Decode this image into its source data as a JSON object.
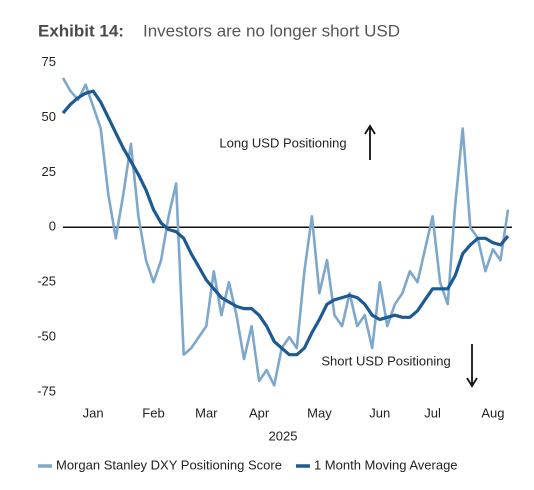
{
  "chart_data": {
    "type": "line",
    "title": "Exhibit 14:",
    "subtitle": "Investors are no longer short USD",
    "xlabel": "2025",
    "categories": [
      null,
      null,
      null,
      null,
      "Jan",
      null,
      null,
      null,
      null,
      null,
      null,
      null,
      "Feb",
      null,
      null,
      null,
      null,
      null,
      null,
      "Mar",
      null,
      null,
      null,
      null,
      null,
      null,
      "Apr",
      null,
      null,
      null,
      null,
      null,
      null,
      null,
      "May",
      null,
      null,
      null,
      null,
      null,
      null,
      null,
      "Jun",
      null,
      null,
      null,
      null,
      null,
      null,
      "Jul",
      null,
      null,
      null,
      null,
      null,
      null,
      null,
      "Aug",
      null,
      null
    ],
    "series": [
      {
        "name": "Morgan Stanley DXY Positioning Score",
        "color": "#7ea7cc",
        "values": [
          68,
          62,
          58,
          65,
          55,
          45,
          15,
          -5,
          15,
          38,
          5,
          -15,
          -25,
          -15,
          5,
          20,
          -58,
          -55,
          -50,
          -45,
          -20,
          -40,
          -25,
          -40,
          -60,
          -45,
          -70,
          -65,
          -72,
          -55,
          -50,
          -55,
          -20,
          5,
          -30,
          -15,
          -40,
          -45,
          -30,
          -45,
          -40,
          -55,
          -25,
          -45,
          -35,
          -30,
          -20,
          -25,
          -10,
          5,
          -25,
          -35,
          10,
          45,
          0,
          -5,
          -20,
          -10,
          -15,
          8
        ]
      },
      {
        "name": "1 Month Moving Average",
        "color": "#1d5a92",
        "values": [
          52,
          56,
          59,
          61,
          62,
          57,
          50,
          43,
          36,
          30,
          24,
          17,
          8,
          2,
          -1,
          -2,
          -5,
          -12,
          -18,
          -24,
          -28,
          -32,
          -34,
          -36,
          -37,
          -37,
          -40,
          -45,
          -52,
          -55,
          -58,
          -58,
          -55,
          -48,
          -42,
          -35,
          -33,
          -32,
          -31,
          -32,
          -35,
          -40,
          -42,
          -41,
          -40,
          -41,
          -41,
          -38,
          -33,
          -28,
          -28,
          -28,
          -22,
          -12,
          -8,
          -5,
          -5,
          -7,
          -8,
          -4
        ]
      }
    ],
    "ylim": [
      -80,
      78
    ],
    "yticks": [
      75,
      50,
      25,
      0,
      -25,
      -50,
      -75
    ],
    "annotations": [
      "Long USD Positioning",
      "Short USD Positioning"
    ]
  }
}
